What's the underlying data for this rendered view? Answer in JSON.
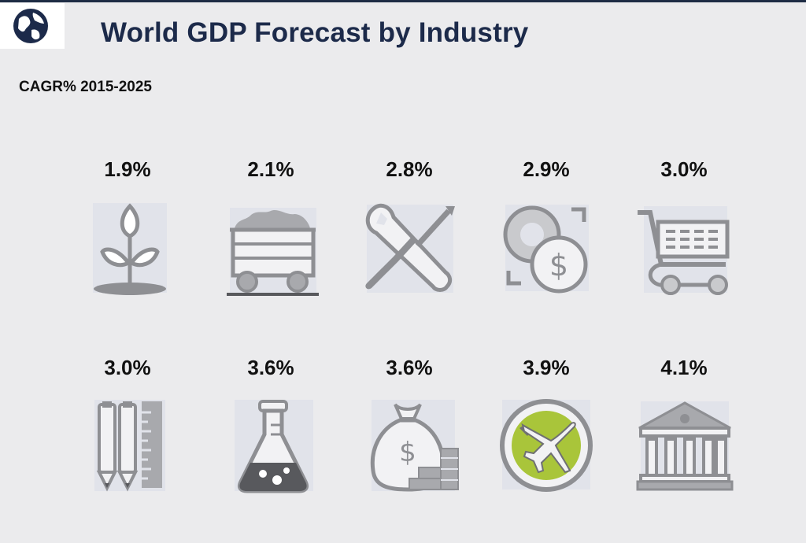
{
  "header": {
    "logo_icon": "globe-icon",
    "title": "World GDP Forecast by Industry",
    "subtitle": "CAGR% 2015-2025"
  },
  "colors": {
    "title": "#1c2a4a",
    "icon_gray": "#8e8f93",
    "icon_bg": "#e1e3ea",
    "highlight_green": "#a9c53a"
  },
  "chart_data": {
    "type": "table",
    "title": "World GDP Forecast by Industry",
    "subtitle": "CAGR% 2015-2025",
    "unit": "%",
    "items": [
      {
        "icon": "plant-icon",
        "label": "1.9%",
        "value": 1.9
      },
      {
        "icon": "mine-cart-icon",
        "label": "2.1%",
        "value": 2.1
      },
      {
        "icon": "wrench-screwdriver-icon",
        "label": "2.8%",
        "value": 2.8
      },
      {
        "icon": "coins-dollar-icon",
        "label": "2.9%",
        "value": 2.9
      },
      {
        "icon": "shopping-cart-icon",
        "label": "3.0%",
        "value": 3.0
      },
      {
        "icon": "pencils-ruler-icon",
        "label": "3.0%",
        "value": 3.0
      },
      {
        "icon": "flask-icon",
        "label": "3.6%",
        "value": 3.6
      },
      {
        "icon": "money-bag-icon",
        "label": "3.6%",
        "value": 3.6
      },
      {
        "icon": "airplane-icon",
        "label": "3.9%",
        "value": 3.9
      },
      {
        "icon": "bank-building-icon",
        "label": "4.1%",
        "value": 4.1
      }
    ]
  }
}
